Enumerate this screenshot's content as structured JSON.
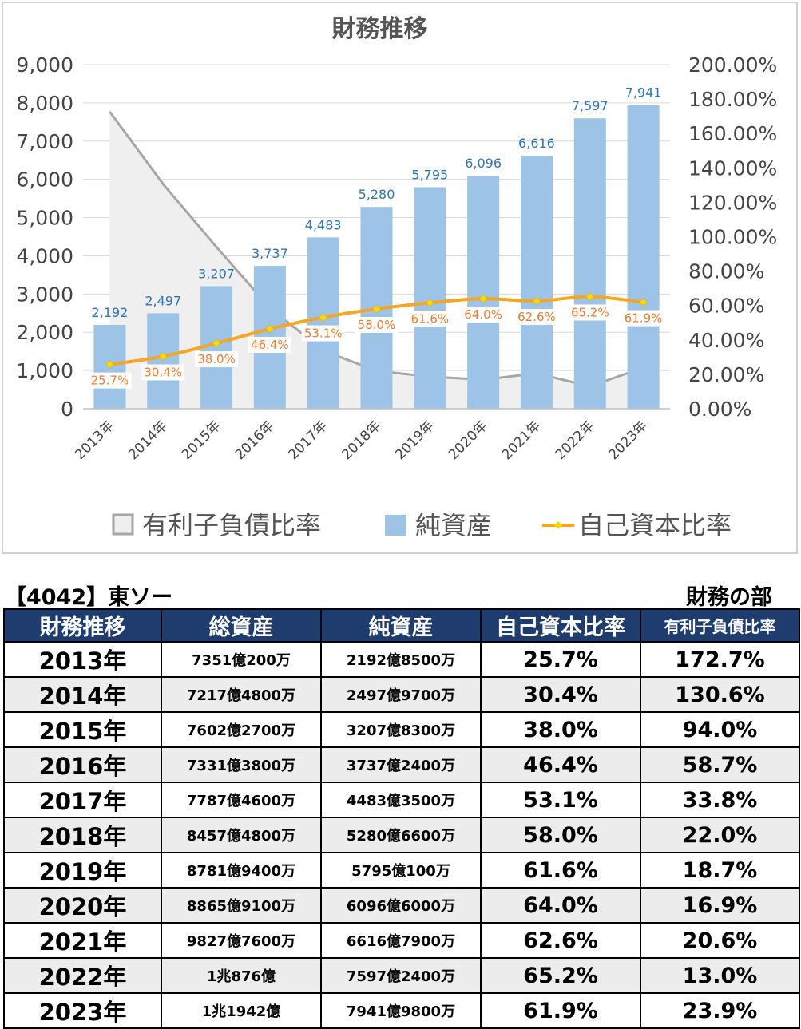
{
  "chart_data": {
    "type": "bar",
    "title": "財務推移",
    "categories": [
      "2013年",
      "2014年",
      "2015年",
      "2016年",
      "2017年",
      "2018年",
      "2019年",
      "2020年",
      "2021年",
      "2022年",
      "2023年"
    ],
    "series": [
      {
        "name": "有利子負債比率",
        "type": "area",
        "axis": "right",
        "values": [
          172.7,
          130.6,
          94.0,
          58.7,
          33.8,
          22.0,
          18.7,
          16.9,
          20.6,
          13.0,
          23.9
        ]
      },
      {
        "name": "純資産",
        "type": "bar",
        "axis": "left",
        "values": [
          2192,
          2497,
          3207,
          3737,
          4483,
          5280,
          5795,
          6096,
          6616,
          7597,
          7941
        ],
        "labels": [
          "2,192",
          "2,497",
          "3,207",
          "3,737",
          "4,483",
          "5,280",
          "5,795",
          "6,096",
          "6,616",
          "7,597",
          "7,941"
        ]
      },
      {
        "name": "自己資本比率",
        "type": "line",
        "axis": "right",
        "values": [
          25.7,
          30.4,
          38.0,
          46.4,
          53.1,
          58.0,
          61.6,
          64.0,
          62.6,
          65.2,
          61.9
        ],
        "labels": [
          "25.7%",
          "30.4%",
          "38.0%",
          "46.4%",
          "53.1%",
          "58.0%",
          "61.6%",
          "64.0%",
          "62.6%",
          "65.2%",
          "61.9%"
        ]
      }
    ],
    "ylim": [
      0,
      9000
    ],
    "y2lim": [
      0,
      200
    ],
    "yticks": [
      "0",
      "1,000",
      "2,000",
      "3,000",
      "4,000",
      "5,000",
      "6,000",
      "7,000",
      "8,000",
      "9,000"
    ],
    "y2ticks": [
      "0.00%",
      "20.00%",
      "40.00%",
      "60.00%",
      "80.00%",
      "100.00%",
      "120.00%",
      "140.00%",
      "160.00%",
      "180.00%",
      "200.00%"
    ],
    "legend": "bottom",
    "colors": {
      "bar": "#9dc3e6",
      "line": "#f5a623",
      "marker": "#ffd700",
      "area_fill": "#efefef",
      "area_stroke": "#a6a6a6",
      "bar_label": "#2e74b5",
      "line_label": "#ed7d31"
    }
  },
  "table": {
    "title": "【4042】東ソー",
    "subtitle": "財務の部",
    "headers": [
      "財務推移",
      "総資産",
      "純資産",
      "自己資本比率",
      "有利子負債比率"
    ],
    "rows": [
      [
        "2013年",
        "7351億200万",
        "2192億8500万",
        "25.7%",
        "172.7%"
      ],
      [
        "2014年",
        "7217億4800万",
        "2497億9700万",
        "30.4%",
        "130.6%"
      ],
      [
        "2015年",
        "7602億2700万",
        "3207億8300万",
        "38.0%",
        "94.0%"
      ],
      [
        "2016年",
        "7331億3800万",
        "3737億2400万",
        "46.4%",
        "58.7%"
      ],
      [
        "2017年",
        "7787億4600万",
        "4483億3500万",
        "53.1%",
        "33.8%"
      ],
      [
        "2018年",
        "8457億4800万",
        "5280億6600万",
        "58.0%",
        "22.0%"
      ],
      [
        "2019年",
        "8781億9400万",
        "5795億100万",
        "61.6%",
        "18.7%"
      ],
      [
        "2020年",
        "8865億9100万",
        "6096億6000万",
        "64.0%",
        "16.9%"
      ],
      [
        "2021年",
        "9827億7600万",
        "6616億7900万",
        "62.6%",
        "20.6%"
      ],
      [
        "2022年",
        "1兆876億",
        "7597億2400万",
        "65.2%",
        "13.0%"
      ],
      [
        "2023年",
        "1兆1942億",
        "7941億9800万",
        "61.9%",
        "23.9%"
      ]
    ]
  }
}
